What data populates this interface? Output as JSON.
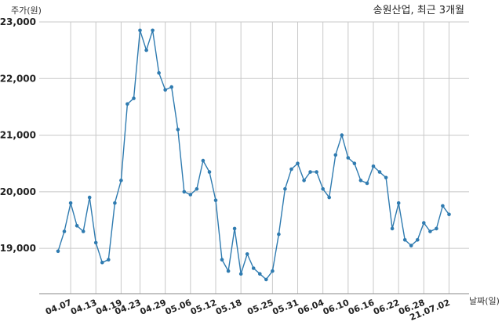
{
  "chart_data": {
    "type": "line",
    "title": "송원산업, 최근 3개월",
    "ylabel": "주가(원)",
    "xlabel": "날짜(일)",
    "ylim": [
      18200,
      23000
    ],
    "yticks": [
      19000,
      20000,
      21000,
      22000,
      23000
    ],
    "ytick_labels": [
      "19,000",
      "20,000",
      "21,000",
      "22,000",
      "23,000"
    ],
    "xtick_labels": [
      "04.07",
      "04.13",
      "04.19",
      "04.23",
      "04.29",
      "05.06",
      "05.12",
      "05.18",
      "05.25",
      "05.31",
      "06.04",
      "06.10",
      "06.16",
      "06.22",
      "06.28",
      "21.07.02"
    ],
    "xtick_positions": [
      2,
      6,
      10,
      13,
      17,
      21,
      25,
      29,
      34,
      38,
      42,
      46,
      50,
      54,
      58,
      62
    ],
    "grid": true,
    "line_color": "#2f7bb0",
    "series": [
      {
        "values": [
          18950,
          19300,
          19800,
          19400,
          19300,
          19900,
          19100,
          18750,
          18800,
          19800,
          20200,
          21550,
          21650,
          22850,
          22500,
          22850,
          22100,
          21800,
          21850,
          21100,
          20000,
          19950,
          20050,
          20550,
          20350,
          19850,
          18800,
          18600,
          19350,
          18550,
          18900,
          18650,
          18550,
          18450,
          18600,
          19250,
          20050,
          20400,
          20500,
          20200,
          20350,
          20350,
          20050,
          19900,
          20650,
          21000,
          20600,
          20500,
          20200,
          20150,
          20450,
          20350,
          20250,
          19350,
          19800,
          19150,
          19050,
          19150,
          19450,
          19300,
          19350,
          19750,
          19600
        ]
      }
    ]
  }
}
